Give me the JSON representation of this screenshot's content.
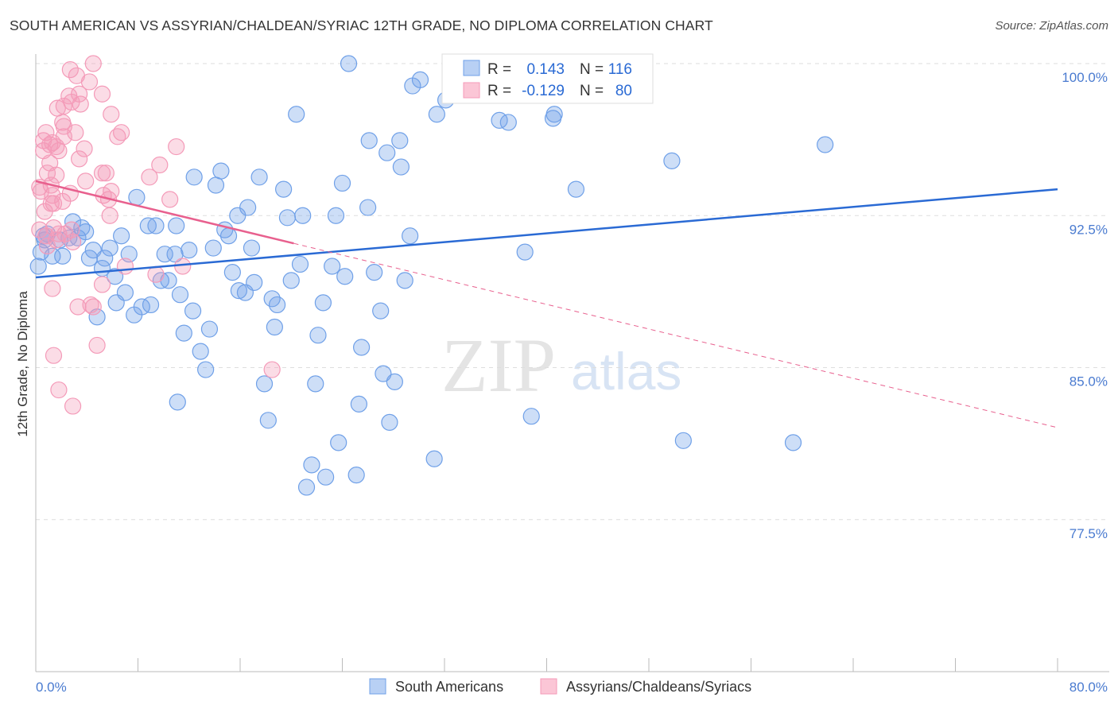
{
  "title": "SOUTH AMERICAN VS ASSYRIAN/CHALDEAN/SYRIAC 12TH GRADE, NO DIPLOMA CORRELATION CHART",
  "source": "Source: ZipAtlas.com",
  "watermark": "ZIPatlas",
  "chart_data": {
    "type": "scatter",
    "title": "SOUTH AMERICAN VS ASSYRIAN/CHALDEAN/SYRIAC 12TH GRADE, NO DIPLOMA CORRELATION CHART",
    "xlabel": "",
    "ylabel": "12th Grade, No Diploma",
    "xlim": [
      0,
      80
    ],
    "ylim": [
      70,
      100.5
    ],
    "x_tick_labels": [
      "0.0%",
      "80.0%"
    ],
    "y_ticks": [
      100,
      92.5,
      85,
      77.5
    ],
    "y_tick_labels": [
      "100.0%",
      "92.5%",
      "85.0%",
      "77.5%"
    ],
    "grid": true,
    "legend_stats": {
      "r_label": "R =",
      "n_label": "N =",
      "series": [
        {
          "r": "0.143",
          "n": "116"
        },
        {
          "r": "-0.129",
          "n": "80"
        }
      ]
    },
    "series": [
      {
        "name": "South Americans",
        "color": "#6fa0e8",
        "line_color": "#2a6ad4",
        "trend": {
          "x": [
            0,
            80
          ],
          "y": [
            89.45,
            93.8
          ]
        },
        "points": [
          [
            24.5,
            100
          ],
          [
            35.4,
            100
          ],
          [
            32.7,
            100
          ],
          [
            39.3,
            100
          ],
          [
            30.1,
            99.2
          ],
          [
            29.5,
            98.9
          ],
          [
            32.1,
            98.2
          ],
          [
            20.4,
            97.5
          ],
          [
            31.4,
            97.5
          ],
          [
            36.3,
            97.2
          ],
          [
            37.0,
            97.1
          ],
          [
            40.5,
            97.3
          ],
          [
            40.6,
            97.5
          ],
          [
            26.1,
            96.2
          ],
          [
            28.5,
            96.2
          ],
          [
            27.5,
            95.6
          ],
          [
            28.6,
            94.9
          ],
          [
            61.8,
            96.0
          ],
          [
            49.8,
            95.2
          ],
          [
            12.4,
            94.4
          ],
          [
            14.5,
            94.7
          ],
          [
            17.5,
            94.4
          ],
          [
            14.1,
            94.0
          ],
          [
            19.4,
            93.8
          ],
          [
            24.0,
            94.1
          ],
          [
            42.3,
            93.8
          ],
          [
            7.9,
            93.4
          ],
          [
            26.0,
            92.9
          ],
          [
            16.6,
            92.9
          ],
          [
            15.8,
            92.5
          ],
          [
            20.9,
            92.5
          ],
          [
            23.5,
            92.5
          ],
          [
            19.7,
            92.4
          ],
          [
            8.8,
            92.0
          ],
          [
            9.4,
            92.0
          ],
          [
            11.0,
            92.0
          ],
          [
            2.9,
            92.2
          ],
          [
            3.6,
            91.9
          ],
          [
            3.9,
            91.7
          ],
          [
            0.9,
            91.6
          ],
          [
            2.6,
            91.4
          ],
          [
            3.3,
            91.4
          ],
          [
            6.7,
            91.5
          ],
          [
            14.8,
            91.8
          ],
          [
            15.1,
            91.5
          ],
          [
            29.3,
            91.5
          ],
          [
            0.7,
            91.3
          ],
          [
            1.9,
            91.3
          ],
          [
            1.3,
            90.5
          ],
          [
            2.1,
            90.5
          ],
          [
            4.5,
            90.8
          ],
          [
            5.8,
            90.9
          ],
          [
            7.3,
            90.6
          ],
          [
            10.1,
            90.6
          ],
          [
            10.9,
            90.6
          ],
          [
            12.0,
            90.8
          ],
          [
            13.9,
            90.9
          ],
          [
            16.9,
            90.9
          ],
          [
            4.2,
            90.4
          ],
          [
            5.4,
            90.4
          ],
          [
            38.3,
            90.7
          ],
          [
            20.7,
            90.1
          ],
          [
            23.2,
            90.0
          ],
          [
            26.5,
            89.7
          ],
          [
            24.2,
            89.5
          ],
          [
            15.4,
            89.7
          ],
          [
            6.2,
            89.5
          ],
          [
            5.2,
            89.9
          ],
          [
            9.8,
            89.3
          ],
          [
            10.4,
            89.3
          ],
          [
            17.1,
            89.2
          ],
          [
            20.0,
            89.3
          ],
          [
            28.9,
            89.3
          ],
          [
            15.9,
            88.8
          ],
          [
            16.4,
            88.7
          ],
          [
            11.3,
            88.6
          ],
          [
            7.0,
            88.7
          ],
          [
            6.3,
            88.2
          ],
          [
            8.3,
            88.0
          ],
          [
            9.0,
            88.1
          ],
          [
            12.3,
            87.8
          ],
          [
            18.5,
            88.4
          ],
          [
            18.9,
            88.1
          ],
          [
            22.5,
            88.2
          ],
          [
            27.0,
            87.8
          ],
          [
            7.7,
            87.6
          ],
          [
            4.8,
            87.5
          ],
          [
            13.6,
            86.9
          ],
          [
            11.6,
            86.7
          ],
          [
            18.7,
            87.0
          ],
          [
            22.1,
            86.6
          ],
          [
            12.9,
            85.8
          ],
          [
            25.5,
            86.0
          ],
          [
            13.3,
            84.9
          ],
          [
            27.2,
            84.7
          ],
          [
            28.1,
            84.3
          ],
          [
            17.9,
            84.2
          ],
          [
            21.9,
            84.2
          ],
          [
            11.1,
            83.3
          ],
          [
            25.3,
            83.2
          ],
          [
            38.8,
            82.6
          ],
          [
            18.2,
            82.4
          ],
          [
            27.7,
            82.3
          ],
          [
            50.7,
            81.4
          ],
          [
            59.3,
            81.3
          ],
          [
            23.7,
            81.3
          ],
          [
            31.2,
            80.5
          ],
          [
            21.6,
            80.2
          ],
          [
            22.7,
            79.6
          ],
          [
            25.1,
            79.7
          ],
          [
            21.2,
            79.1
          ],
          [
            0.2,
            90.0
          ],
          [
            0.4,
            90.7
          ],
          [
            0.6,
            91.5
          ]
        ]
      },
      {
        "name": "Assyrians/Chaldeans/Syriacs",
        "color": "#f49ab8",
        "line_color": "#e8608e",
        "trend": {
          "x": [
            0,
            80
          ],
          "y": [
            94.2,
            82.04
          ],
          "solid_until": 20.2
        },
        "points": [
          [
            4.5,
            100
          ],
          [
            2.7,
            99.7
          ],
          [
            3.2,
            99.4
          ],
          [
            4.2,
            99.1
          ],
          [
            5.2,
            98.5
          ],
          [
            2.6,
            98.4
          ],
          [
            3.4,
            98.5
          ],
          [
            2.8,
            98.1
          ],
          [
            3.5,
            98.0
          ],
          [
            1.7,
            97.8
          ],
          [
            2.2,
            97.9
          ],
          [
            5.9,
            97.5
          ],
          [
            2.1,
            97.1
          ],
          [
            2.2,
            96.9
          ],
          [
            0.8,
            96.6
          ],
          [
            6.7,
            96.6
          ],
          [
            2.2,
            96.4
          ],
          [
            3.1,
            96.6
          ],
          [
            6.4,
            96.4
          ],
          [
            0.6,
            96.2
          ],
          [
            1.1,
            96.0
          ],
          [
            1.6,
            95.9
          ],
          [
            1.3,
            96.1
          ],
          [
            1.8,
            95.7
          ],
          [
            3.8,
            95.8
          ],
          [
            11.0,
            95.9
          ],
          [
            0.6,
            95.7
          ],
          [
            3.4,
            95.3
          ],
          [
            1.1,
            95.1
          ],
          [
            9.7,
            95.0
          ],
          [
            1.6,
            94.5
          ],
          [
            0.9,
            94.6
          ],
          [
            5.2,
            94.6
          ],
          [
            5.5,
            94.6
          ],
          [
            8.9,
            94.4
          ],
          [
            3.9,
            94.2
          ],
          [
            0.3,
            93.9
          ],
          [
            0.4,
            93.7
          ],
          [
            5.9,
            93.7
          ],
          [
            2.7,
            93.6
          ],
          [
            5.3,
            93.5
          ],
          [
            5.7,
            93.3
          ],
          [
            1.3,
            93.5
          ],
          [
            1.2,
            93.1
          ],
          [
            2.1,
            93.2
          ],
          [
            1.4,
            93.1
          ],
          [
            10.5,
            93.3
          ],
          [
            0.7,
            92.7
          ],
          [
            5.8,
            92.5
          ],
          [
            2.8,
            91.8
          ],
          [
            1.4,
            91.9
          ],
          [
            1.8,
            91.6
          ],
          [
            0.8,
            91.5
          ],
          [
            2.9,
            91.2
          ],
          [
            1.6,
            91.3
          ],
          [
            2.3,
            91.6
          ],
          [
            11.5,
            90.0
          ],
          [
            7.0,
            90.0
          ],
          [
            9.4,
            89.6
          ],
          [
            5.2,
            89.1
          ],
          [
            1.3,
            88.9
          ],
          [
            3.3,
            88.0
          ],
          [
            4.3,
            88.1
          ],
          [
            4.5,
            88.0
          ],
          [
            4.8,
            86.1
          ],
          [
            1.4,
            85.6
          ],
          [
            18.5,
            84.9
          ],
          [
            1.8,
            83.9
          ],
          [
            2.9,
            83.1
          ],
          [
            0.3,
            91.8
          ],
          [
            0.9,
            91.0
          ],
          [
            1.2,
            94.0
          ]
        ]
      }
    ]
  }
}
